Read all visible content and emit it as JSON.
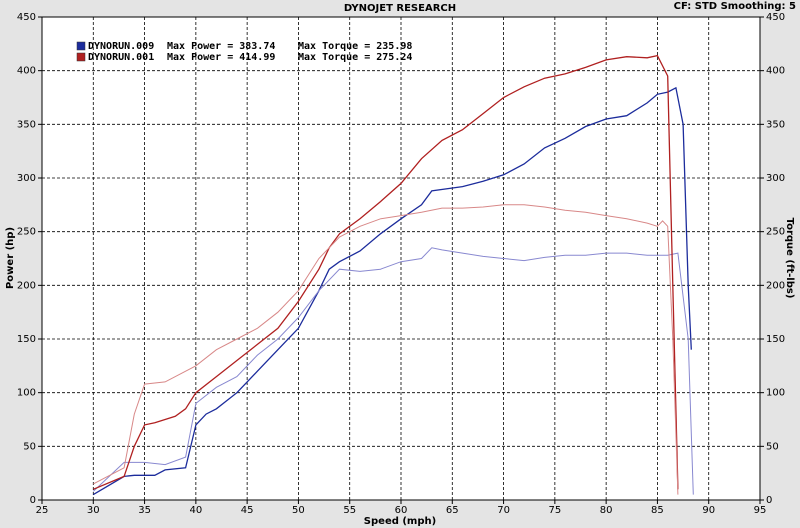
{
  "chart_data": {
    "type": "line",
    "title": "DYNOJET RESEARCH",
    "subtitle": "CF: STD  Smoothing: 5",
    "x_label": "Speed (mph)",
    "y_label": "Power (hp)",
    "y2_label": "Torque (ft-lbs)",
    "xlim": [
      25,
      95
    ],
    "xticks": [
      25,
      30,
      35,
      40,
      45,
      50,
      55,
      60,
      65,
      70,
      75,
      80,
      85,
      90,
      95
    ],
    "ylim": [
      0,
      450
    ],
    "yticks": [
      0,
      50,
      100,
      150,
      200,
      250,
      300,
      350,
      400,
      450
    ],
    "y2lim": [
      0,
      450
    ],
    "y2ticks": [
      0,
      50,
      100,
      150,
      200,
      250,
      300,
      350,
      400,
      450
    ],
    "grid": true,
    "legend": [
      {
        "run": "DYNORUN.009",
        "power": "Max Power = 383.74",
        "torque": "Max Torque = 235.98",
        "color": "#1c2c9c"
      },
      {
        "run": "DYNORUN.001",
        "power": "Max Power = 414.99",
        "torque": "Max Torque = 275.24",
        "color": "#b02020"
      }
    ],
    "series": [
      {
        "color": "#1c2c9c",
        "x": [
          30,
          33,
          34,
          36,
          37,
          39,
          40,
          41,
          42,
          44,
          46,
          48,
          50,
          52,
          53,
          54,
          56,
          58,
          60,
          62,
          63,
          66,
          68,
          70,
          72,
          74,
          76,
          78,
          80,
          82,
          84,
          85,
          86,
          86.8,
          87.5,
          88,
          88.3
        ],
        "values": [
          5,
          22,
          23,
          23,
          28,
          30,
          70,
          80,
          85,
          100,
          120,
          140,
          160,
          195,
          215,
          222,
          232,
          248,
          262,
          275,
          288,
          292,
          297,
          303,
          313,
          328,
          337,
          348,
          355,
          358,
          370,
          378,
          380,
          384,
          350,
          200,
          140
        ]
      },
      {
        "color": "#8888d0",
        "axis": "y2",
        "x": [
          30,
          33,
          35,
          37,
          39,
          40,
          42,
          44,
          46,
          48,
          50,
          52,
          54,
          56,
          58,
          60,
          62,
          63,
          64,
          66,
          68,
          70,
          72,
          74,
          76,
          78,
          80,
          82,
          84,
          86,
          87,
          88,
          88.5
        ],
        "values": [
          8,
          35,
          35,
          33,
          40,
          90,
          105,
          115,
          135,
          150,
          170,
          195,
          215,
          213,
          215,
          222,
          225,
          235,
          233,
          230,
          227,
          225,
          223,
          226,
          228,
          228,
          230,
          230,
          228,
          228,
          230,
          150,
          5
        ]
      },
      {
        "color": "#b02020",
        "x": [
          30,
          33,
          34,
          35,
          36,
          38,
          39,
          40,
          42,
          44,
          46,
          48,
          50,
          52,
          53,
          54,
          56,
          58,
          60,
          62,
          64,
          66,
          68,
          70,
          72,
          74,
          76,
          78,
          80,
          82,
          84,
          85,
          86,
          86.5,
          87
        ],
        "values": [
          10,
          22,
          50,
          70,
          72,
          78,
          85,
          100,
          115,
          130,
          145,
          160,
          185,
          215,
          235,
          248,
          262,
          278,
          295,
          318,
          335,
          345,
          360,
          375,
          385,
          393,
          397,
          403,
          410,
          413,
          412,
          414,
          395,
          200,
          10
        ]
      },
      {
        "color": "#d88888",
        "axis": "y2",
        "x": [
          30,
          33,
          34,
          35,
          37,
          40,
          42,
          44,
          46,
          48,
          50,
          52,
          54,
          56,
          58,
          60,
          62,
          64,
          66,
          68,
          70,
          72,
          74,
          76,
          78,
          80,
          82,
          84,
          85,
          85.5,
          86,
          86.5,
          87
        ],
        "values": [
          15,
          30,
          80,
          108,
          110,
          125,
          140,
          150,
          160,
          175,
          195,
          225,
          245,
          255,
          262,
          265,
          268,
          272,
          272,
          273,
          275,
          275,
          273,
          270,
          268,
          265,
          262,
          258,
          255,
          260,
          255,
          150,
          5
        ]
      }
    ]
  }
}
